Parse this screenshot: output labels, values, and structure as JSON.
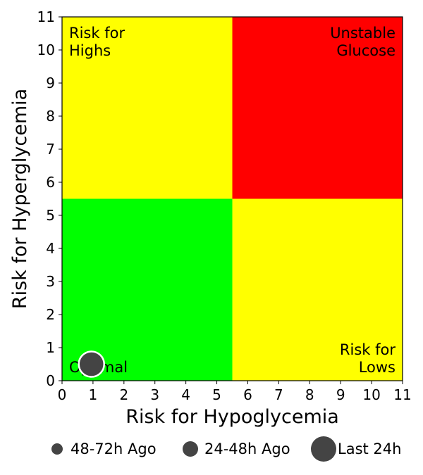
{
  "chart_data": {
    "type": "scatter",
    "xlabel": "Risk for Hypoglycemia",
    "ylabel": "Risk for Hyperglycemia",
    "xlim": [
      0,
      11
    ],
    "ylim": [
      0,
      11
    ],
    "x_ticks": [
      "0",
      "1",
      "2",
      "3",
      "4",
      "5",
      "6",
      "7",
      "8",
      "9",
      "10",
      "11"
    ],
    "y_ticks": [
      "0",
      "1",
      "2",
      "3",
      "4",
      "5",
      "6",
      "7",
      "8",
      "9",
      "10",
      "11"
    ],
    "quadrant_split": {
      "x": 5.5,
      "y": 5.5
    },
    "zones": [
      {
        "label_lines": [
          "Risk for",
          "Highs"
        ],
        "color": "#ffff00",
        "x_range": [
          0,
          5.5
        ],
        "y_range": [
          5.5,
          11
        ],
        "label_anchor": "top-left"
      },
      {
        "label_lines": [
          "Unstable",
          "Glucose"
        ],
        "color": "#ff0000",
        "x_range": [
          5.5,
          11
        ],
        "y_range": [
          5.5,
          11
        ],
        "label_anchor": "top-right"
      },
      {
        "label_lines": [
          "Optimal"
        ],
        "color": "#00ff00",
        "x_range": [
          0,
          5.5
        ],
        "y_range": [
          0,
          5.5
        ],
        "label_anchor": "bottom-left"
      },
      {
        "label_lines": [
          "Risk for",
          "Lows"
        ],
        "color": "#ffff00",
        "x_range": [
          5.5,
          11
        ],
        "y_range": [
          0,
          5.5
        ],
        "label_anchor": "bottom-right"
      }
    ],
    "points": [
      {
        "series": "Last 24h",
        "x": 0.95,
        "y": 0.5
      }
    ],
    "point_color": "#444444",
    "legend": {
      "placement": "bottom",
      "items": [
        {
          "label": "48-72h Ago",
          "marker_size": "small"
        },
        {
          "label": "24-48h Ago",
          "marker_size": "medium"
        },
        {
          "label": "Last 24h",
          "marker_size": "large"
        }
      ]
    }
  }
}
